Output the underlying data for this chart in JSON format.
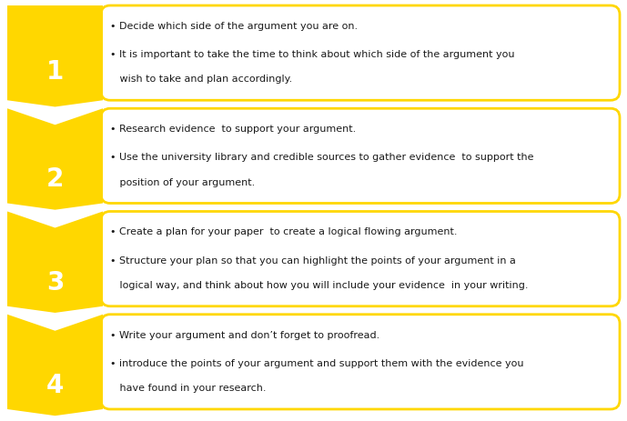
{
  "background_color": "#ffffff",
  "arrow_color": "#FFD700",
  "box_border_color": "#FFD700",
  "box_fill_color": "#ffffff",
  "text_color": "#1a1a1a",
  "number_color": "#ffffff",
  "steps": [
    {
      "number": "1",
      "line1": "• Decide which side of the argument you are on.",
      "line2": "• It is important to take the time to think about which side of the argument you",
      "line3": "   wish to take and plan accordingly."
    },
    {
      "number": "2",
      "line1": "• Research evidence  to support your argument.",
      "line2": "• Use the university library and credible sources to gather evidence  to support the",
      "line3": "   position of your argument."
    },
    {
      "number": "3",
      "line1": "• Create a plan for your paper  to create a logical flowing argument.",
      "line2": "• Structure your plan so that you can highlight the points of your argument in a",
      "line3": "   logical way, and think about how you will include your evidence  in your writing."
    },
    {
      "number": "4",
      "line1": "• Write your argument and don’t forget to proofread.",
      "line2": "• introduce the points of your argument and support them with the evidence you",
      "line3": "   have found in your research."
    }
  ]
}
